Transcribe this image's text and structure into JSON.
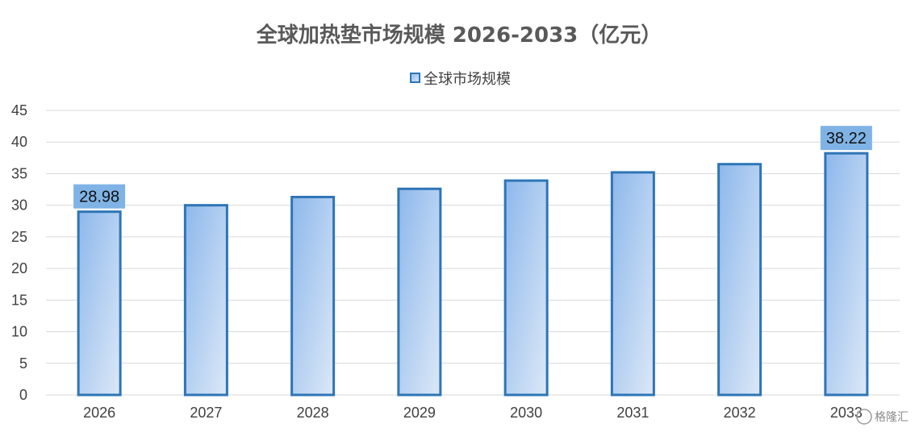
{
  "chart_data": {
    "type": "bar",
    "title": "全球加热垫市场规模 2026-2033（亿元）",
    "categories": [
      "2026",
      "2027",
      "2028",
      "2029",
      "2030",
      "2031",
      "2032",
      "2033"
    ],
    "series": [
      {
        "name": "全球市场规模",
        "values": [
          28.98,
          30.0,
          31.3,
          32.6,
          33.9,
          35.2,
          36.5,
          38.22
        ]
      }
    ],
    "data_labels": [
      {
        "category": "2026",
        "text": "28.98"
      },
      {
        "category": "2033",
        "text": "38.22"
      }
    ],
    "ylim": [
      0,
      45
    ],
    "yticks": [
      0,
      5,
      10,
      15,
      20,
      25,
      30,
      35,
      40,
      45
    ],
    "grid": true,
    "legend_position": "top-center",
    "colors": {
      "bar_gradient_start": "#8db8ec",
      "bar_gradient_end": "#dce8f7",
      "bar_border": "#2e75b6",
      "label_background": "#7fb3e6"
    }
  },
  "watermark": {
    "text": "格隆汇"
  }
}
